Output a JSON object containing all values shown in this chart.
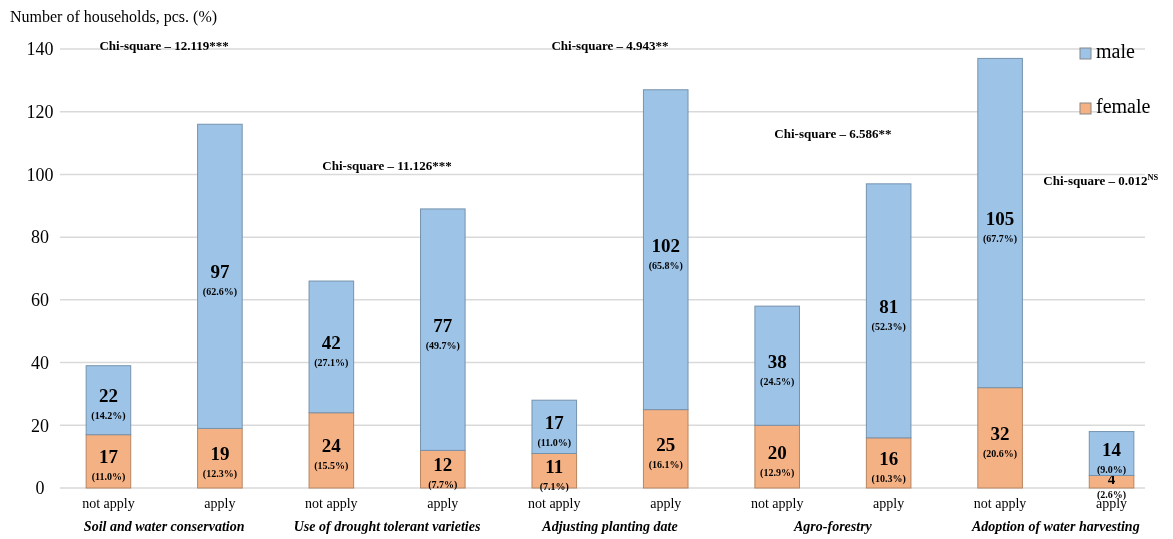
{
  "chart_data": {
    "type": "bar",
    "stacked": true,
    "ylabel": "Number of households, pcs. (%)",
    "categories": [
      "not apply",
      "apply",
      "not apply",
      "apply",
      "not apply",
      "apply",
      "not apply",
      "apply",
      "not apply",
      "apply"
    ],
    "series": [
      {
        "name": "female",
        "color": "#f4b183",
        "values": [
          17,
          19,
          24,
          12,
          11,
          25,
          20,
          16,
          32,
          4
        ],
        "value_labels": [
          "17 (11.0%)",
          "19 (12.3%)",
          "24 (15.5%)",
          "12 (7.7%)",
          "11 (7.1%)",
          "25 (16.1%)",
          "20 (12.9%)",
          "16 (10.3%)",
          "32 (20.6%)",
          "4 (2.6%)"
        ]
      },
      {
        "name": "male",
        "color": "#9dc3e6",
        "values": [
          22,
          97,
          42,
          77,
          17,
          102,
          38,
          81,
          105,
          14
        ],
        "value_labels": [
          "22 (14.2%)",
          "97 (62.6%)",
          "42 (27.1%)",
          "77 (49.7%)",
          "17 (11.0%)",
          "102 (65.8%)",
          "38 (24.5%)",
          "81 (52.3%)",
          "105 (67.7%)",
          "14 (9.0%)"
        ]
      }
    ],
    "annotations": [
      "Soil and water conservation",
      "Use of drought tolerant varieties",
      "Adjusting planting date",
      "Agro-forestry",
      "Adoption of water harvesting",
      "Chi-square – 12.119***",
      "Chi-square – 11.126***",
      "Chi-square – 4.943**",
      "Chi-square – 6.586**",
      "Chi-square – 0.012$^{NS}$"
    ],
    "ylim": [
      0,
      140
    ],
    "yticks": [
      0,
      20,
      40,
      60,
      80,
      100,
      120,
      140
    ],
    "grid": "y",
    "legend": "top right"
  }
}
